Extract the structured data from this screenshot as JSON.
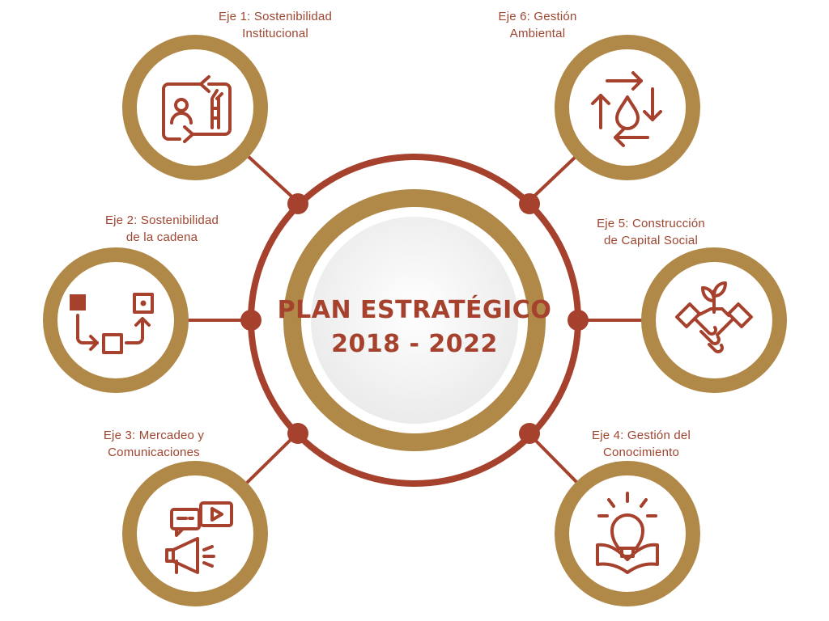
{
  "center": {
    "title_line1": "PLAN ESTRATÉGICO",
    "title_line2": "2018 - 2022"
  },
  "axes": [
    {
      "line1": "Eje 1: Sostenibilidad",
      "line2": "Institucional",
      "icon": "people-cane-cycle-icon"
    },
    {
      "line1": "Eje 2: Sostenibilidad",
      "line2": "de la cadena",
      "icon": "process-flow-icon"
    },
    {
      "line1": "Eje 3: Mercadeo y",
      "line2": "Comunicaciones",
      "icon": "megaphone-chat-icon"
    },
    {
      "line1": "Eje 4: Gestión del",
      "line2": "Conocimiento",
      "icon": "lightbulb-book-icon"
    },
    {
      "line1": "Eje 5: Construcción",
      "line2": "de Capital Social",
      "icon": "handshake-plant-icon"
    },
    {
      "line1": "Eje 6: Gestión",
      "line2": "Ambiental",
      "icon": "water-drop-recycle-icon"
    }
  ],
  "colors": {
    "gold": "#b08848",
    "rust": "#a5412d",
    "ring_white": "#ffffff",
    "inner_gray": "#f1f1f1"
  }
}
